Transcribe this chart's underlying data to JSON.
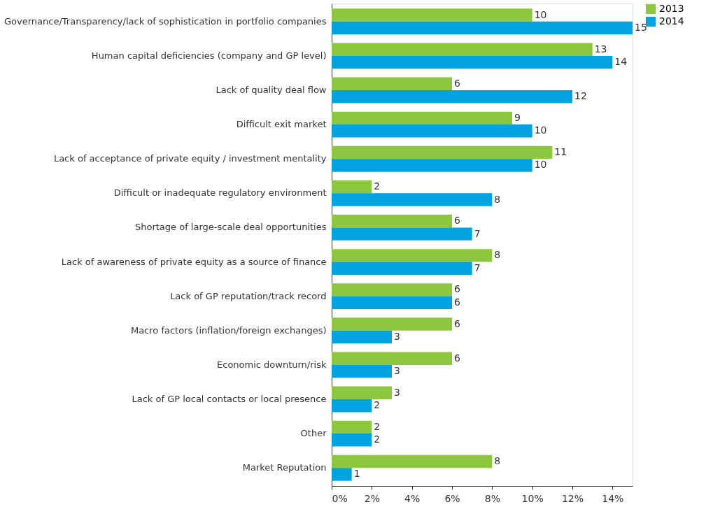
{
  "chart_data": {
    "type": "bar",
    "orientation": "horizontal",
    "categories": [
      "Governance/Transparency/lack of sophistication in portfolio companies",
      "Human capital deficiencies (company and GP level)",
      "Lack of quality deal flow",
      "Difficult exit market",
      "Lack of acceptance of private equity / investment mentality",
      "Difficult or inadequate regulatory environment",
      "Shortage of large-scale deal opportunities",
      "Lack of awareness of private equity as a source of finance",
      "Lack of GP reputation/track record",
      "Macro factors (inflation/foreign exchanges)",
      "Economic downturn/risk",
      "Lack of GP local contacts or local presence",
      "Other",
      "Market Reputation"
    ],
    "series": [
      {
        "name": "2013",
        "color": "#8dc63f",
        "values": [
          10,
          13,
          6,
          9,
          11,
          2,
          6,
          8,
          6,
          6,
          6,
          3,
          2,
          8
        ]
      },
      {
        "name": "2014",
        "color": "#00a3e0",
        "values": [
          15,
          14,
          12,
          10,
          10,
          8,
          7,
          7,
          6,
          3,
          3,
          2,
          2,
          1
        ]
      }
    ],
    "xlim": [
      0,
      15
    ],
    "xticks": [
      {
        "value": 0,
        "label": "0%"
      },
      {
        "value": 2,
        "label": "2%"
      },
      {
        "value": 4,
        "label": "4%"
      },
      {
        "value": 6,
        "label": "6%"
      },
      {
        "value": 8,
        "label": "8%"
      },
      {
        "value": 10,
        "label": "10%"
      },
      {
        "value": 12,
        "label": "12%"
      },
      {
        "value": 14,
        "label": "14%"
      }
    ],
    "data_labels": true,
    "grid": false,
    "legend": "right"
  }
}
